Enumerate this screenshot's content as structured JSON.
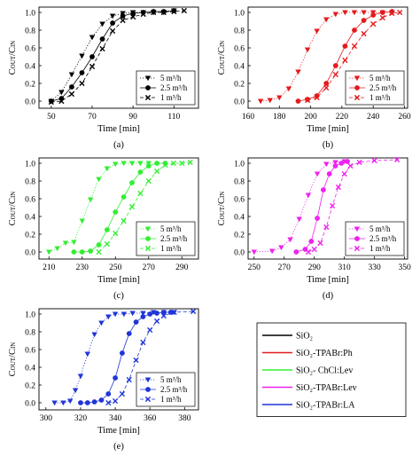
{
  "chart_data": [
    {
      "type": "line",
      "panel": "(a)",
      "color": "#000000",
      "xlabel": "Time [min]",
      "ylabel": "C_OUT/C_IN",
      "xlim": [
        44,
        122
      ],
      "ylim": [
        -0.08,
        1.06
      ],
      "xticks": [
        50,
        70,
        90,
        110
      ],
      "yticks": [
        0.0,
        0.2,
        0.4,
        0.6,
        0.8,
        1.0
      ],
      "legend": "bottom-right",
      "series": [
        {
          "name": "5 m³/h",
          "marker": "triangle-down",
          "linestyle": "dotted",
          "x": [
            50,
            55,
            60,
            65,
            70,
            75,
            80,
            85,
            90,
            95,
            100,
            105,
            110
          ],
          "y": [
            0.0,
            0.1,
            0.3,
            0.51,
            0.72,
            0.87,
            0.96,
            0.99,
            1.0,
            1.0,
            1.0,
            1.0,
            1.02
          ]
        },
        {
          "name": "2.5 m³/h",
          "marker": "circle",
          "linestyle": "solid",
          "x": [
            50,
            55,
            60,
            65,
            70,
            75,
            80,
            85,
            90,
            95,
            100,
            105,
            110
          ],
          "y": [
            0.0,
            0.03,
            0.16,
            0.32,
            0.5,
            0.7,
            0.88,
            0.96,
            0.99,
            1.0,
            1.01,
            1.01,
            1.02
          ]
        },
        {
          "name": "1 m³/h",
          "marker": "x",
          "linestyle": "dashed",
          "x": [
            50,
            55,
            60,
            65,
            70,
            75,
            80,
            85,
            90,
            95,
            100,
            105,
            110,
            115
          ],
          "y": [
            -0.01,
            0.0,
            0.08,
            0.2,
            0.39,
            0.59,
            0.79,
            0.91,
            0.95,
            0.98,
            1.0,
            1.0,
            1.01,
            1.02
          ]
        }
      ]
    },
    {
      "type": "line",
      "panel": "(b)",
      "color": "#e41a1c",
      "xlabel": "Time [min]",
      "ylabel": "C_OUT/C_IN",
      "xlim": [
        160,
        262
      ],
      "ylim": [
        -0.08,
        1.06
      ],
      "xticks": [
        160,
        180,
        200,
        220,
        240,
        260
      ],
      "yticks": [
        0.0,
        0.2,
        0.4,
        0.6,
        0.8,
        1.0
      ],
      "legend": "bottom-right",
      "series": [
        {
          "name": "5 m³/h",
          "marker": "triangle-down",
          "linestyle": "dotted",
          "x": [
            168,
            174,
            180,
            186,
            192,
            198,
            204,
            210,
            216,
            222,
            228,
            234,
            240,
            246,
            252
          ],
          "y": [
            0.0,
            0.01,
            0.04,
            0.14,
            0.33,
            0.58,
            0.79,
            0.92,
            0.98,
            1.0,
            1.0,
            1.0,
            1.0,
            1.0,
            1.0
          ]
        },
        {
          "name": "2.5 m³/h",
          "marker": "circle",
          "linestyle": "solid",
          "x": [
            192,
            198,
            204,
            210,
            216,
            222,
            228,
            234,
            240,
            246,
            252
          ],
          "y": [
            0.0,
            0.02,
            0.06,
            0.2,
            0.4,
            0.62,
            0.8,
            0.91,
            0.97,
            1.0,
            1.01
          ]
        },
        {
          "name": "1 m³/h",
          "marker": "x",
          "linestyle": "dashed",
          "x": [
            198,
            204,
            210,
            216,
            222,
            228,
            234,
            240,
            246,
            252,
            257
          ],
          "y": [
            0.01,
            0.04,
            0.15,
            0.3,
            0.46,
            0.62,
            0.76,
            0.87,
            0.94,
            0.99,
            1.0
          ]
        }
      ]
    },
    {
      "type": "line",
      "panel": "(c)",
      "color": "#33ee33",
      "xlabel": "Time [min]",
      "ylabel": "C_OUT/C_IN",
      "xlim": [
        204,
        300
      ],
      "ylim": [
        -0.08,
        1.06
      ],
      "xticks": [
        210,
        230,
        250,
        270,
        290
      ],
      "yticks": [
        0.0,
        0.2,
        0.4,
        0.6,
        0.8,
        1.0
      ],
      "legend": "bottom-right",
      "series": [
        {
          "name": "5 m³/h",
          "marker": "triangle-down",
          "linestyle": "dotted",
          "x": [
            210,
            215,
            220,
            225,
            230,
            235,
            240,
            245,
            250,
            255,
            260,
            265,
            270
          ],
          "y": [
            0.0,
            0.04,
            0.1,
            0.11,
            0.35,
            0.59,
            0.82,
            0.94,
            0.99,
            1.0,
            1.0,
            1.0,
            1.0
          ]
        },
        {
          "name": "2.5 m³/h",
          "marker": "circle",
          "linestyle": "solid",
          "x": [
            225,
            230,
            235,
            240,
            245,
            250,
            255,
            260,
            265,
            270,
            275,
            280
          ],
          "y": [
            0.0,
            0.0,
            0.01,
            0.08,
            0.25,
            0.45,
            0.62,
            0.78,
            0.9,
            0.97,
            1.0,
            1.0
          ]
        },
        {
          "name": "1 m³/h",
          "marker": "x",
          "linestyle": "dashed",
          "x": [
            240,
            245,
            250,
            255,
            260,
            265,
            270,
            275,
            280,
            285,
            290,
            295
          ],
          "y": [
            0.0,
            0.09,
            0.21,
            0.35,
            0.51,
            0.66,
            0.8,
            0.91,
            0.98,
            1.0,
            1.0,
            1.01
          ]
        }
      ]
    },
    {
      "type": "line",
      "panel": "(d)",
      "color": "#ee22ee",
      "xlabel": "Time [min]",
      "ylabel": "C_OUT/C_IN",
      "xlim": [
        246,
        352
      ],
      "ylim": [
        -0.08,
        1.06
      ],
      "xticks": [
        250,
        270,
        290,
        310,
        330,
        350
      ],
      "yticks": [
        0.0,
        0.2,
        0.4,
        0.6,
        0.8,
        1.0
      ],
      "legend": "bottom-right",
      "series": [
        {
          "name": "5 m³/h",
          "marker": "triangle-down",
          "linestyle": "dotted",
          "x": [
            250,
            262,
            268,
            274,
            280,
            286,
            292,
            298,
            304,
            310
          ],
          "y": [
            0.0,
            0.01,
            0.05,
            0.14,
            0.37,
            0.64,
            0.88,
            0.99,
            1.01,
            1.02
          ]
        },
        {
          "name": "2.5 m³/h",
          "marker": "circle",
          "linestyle": "solid",
          "x": [
            278,
            284,
            288,
            292,
            296,
            300,
            304,
            308,
            312
          ],
          "y": [
            0.0,
            0.03,
            0.12,
            0.38,
            0.7,
            0.88,
            0.97,
            1.0,
            1.02
          ]
        },
        {
          "name": "1 m³/h",
          "marker": "x",
          "linestyle": "dashed",
          "x": [
            286,
            290,
            294,
            298,
            302,
            306,
            310,
            314,
            320,
            330,
            345
          ],
          "y": [
            0.0,
            0.03,
            0.1,
            0.28,
            0.52,
            0.73,
            0.88,
            0.97,
            1.01,
            1.03,
            1.04
          ]
        }
      ]
    },
    {
      "type": "line",
      "panel": "(e)",
      "color": "#1f35d8",
      "xlabel": "Time [min]",
      "ylabel": "C_OUT/C_IN",
      "xlim": [
        296,
        388
      ],
      "ylim": [
        -0.08,
        1.06
      ],
      "xticks": [
        300,
        320,
        340,
        360,
        380
      ],
      "yticks": [
        0.0,
        0.2,
        0.4,
        0.6,
        0.8,
        1.0
      ],
      "legend": "bottom-right",
      "series": [
        {
          "name": "5 m³/h",
          "marker": "triangle-down",
          "linestyle": "dotted",
          "x": [
            305,
            310,
            314,
            317,
            320,
            324,
            328,
            332,
            336,
            340,
            345,
            350,
            356,
            362,
            368,
            374
          ],
          "y": [
            0.0,
            0.0,
            0.02,
            0.14,
            0.3,
            0.55,
            0.77,
            0.9,
            0.97,
            1.0,
            1.0,
            1.01,
            1.01,
            1.02,
            1.02,
            1.02
          ]
        },
        {
          "name": "2.5 m³/h",
          "marker": "circle",
          "linestyle": "solid",
          "x": [
            320,
            324,
            328,
            332,
            336,
            340,
            344,
            348,
            352,
            356,
            360,
            364,
            368,
            372
          ],
          "y": [
            0.0,
            0.0,
            0.01,
            0.03,
            0.1,
            0.28,
            0.56,
            0.78,
            0.91,
            0.97,
            1.0,
            1.01,
            1.02,
            1.02
          ]
        },
        {
          "name": "1 m³/h",
          "marker": "x",
          "linestyle": "dashed",
          "x": [
            336,
            340,
            344,
            348,
            352,
            356,
            360,
            364,
            368,
            374,
            385
          ],
          "y": [
            0.0,
            0.02,
            0.1,
            0.26,
            0.48,
            0.68,
            0.82,
            0.92,
            0.98,
            1.02,
            1.03
          ]
        }
      ]
    }
  ],
  "key": {
    "items": [
      {
        "label": "SiO₂",
        "color": "#000000"
      },
      {
        "label": "SiO₂-TPABr:Ph",
        "color": "#e41a1c"
      },
      {
        "label": "SiO₂- ChCl:Lev",
        "color": "#33ee33"
      },
      {
        "label": "SiO₂-TPABr:Lev",
        "color": "#ee22ee"
      },
      {
        "label": "SiO₂-TPABr:LA",
        "color": "#1f35d8"
      }
    ]
  }
}
